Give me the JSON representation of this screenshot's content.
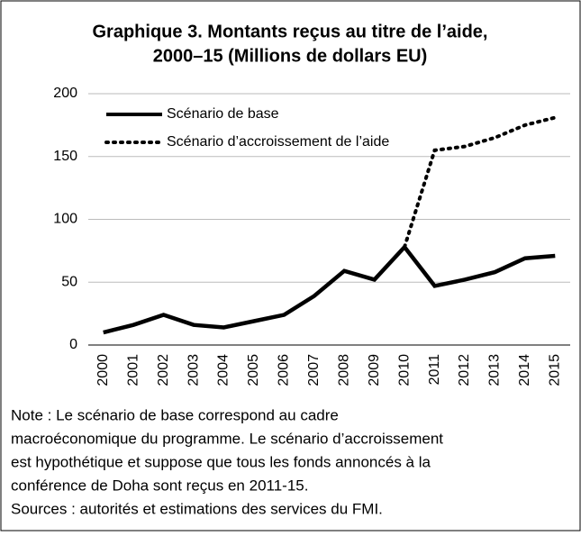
{
  "chart_data": {
    "type": "line",
    "title": [
      "Graphique 3. Montants reçus au titre de l’aide,",
      "2000–15 (Millions de dollars EU)"
    ],
    "categories": [
      "2000",
      "2001",
      "2002",
      "2003",
      "2004",
      "2005",
      "2006",
      "2007",
      "2008",
      "2009",
      "2010",
      "2011",
      "2012",
      "2013",
      "2014",
      "2015"
    ],
    "series": [
      {
        "name": "Scénario de base",
        "color": "#000000",
        "dash": false,
        "values": [
          10,
          16,
          24,
          16,
          14,
          19,
          24,
          39,
          59,
          52,
          78,
          47,
          52,
          58,
          69,
          71
        ]
      },
      {
        "name": "Scénario d’accroissement de l’aide",
        "color": "#000000",
        "dash": true,
        "values": [
          null,
          null,
          null,
          null,
          null,
          null,
          null,
          null,
          null,
          null,
          78,
          155,
          158,
          165,
          175,
          181
        ]
      }
    ],
    "ylim": [
      0,
      200
    ],
    "yticks": [
      0,
      50,
      100,
      150,
      200
    ],
    "grid": true,
    "legend": "top-left",
    "note": [
      "Note : Le scénario de base correspond au cadre",
      "macroéconomique du programme. Le scénario d’accroissement",
      "est hypothétique et suppose que tous les fonds annoncés à la",
      "conférence de Doha sont reçus en 2011-15.",
      "Sources : autorités et estimations des services du FMI."
    ]
  }
}
